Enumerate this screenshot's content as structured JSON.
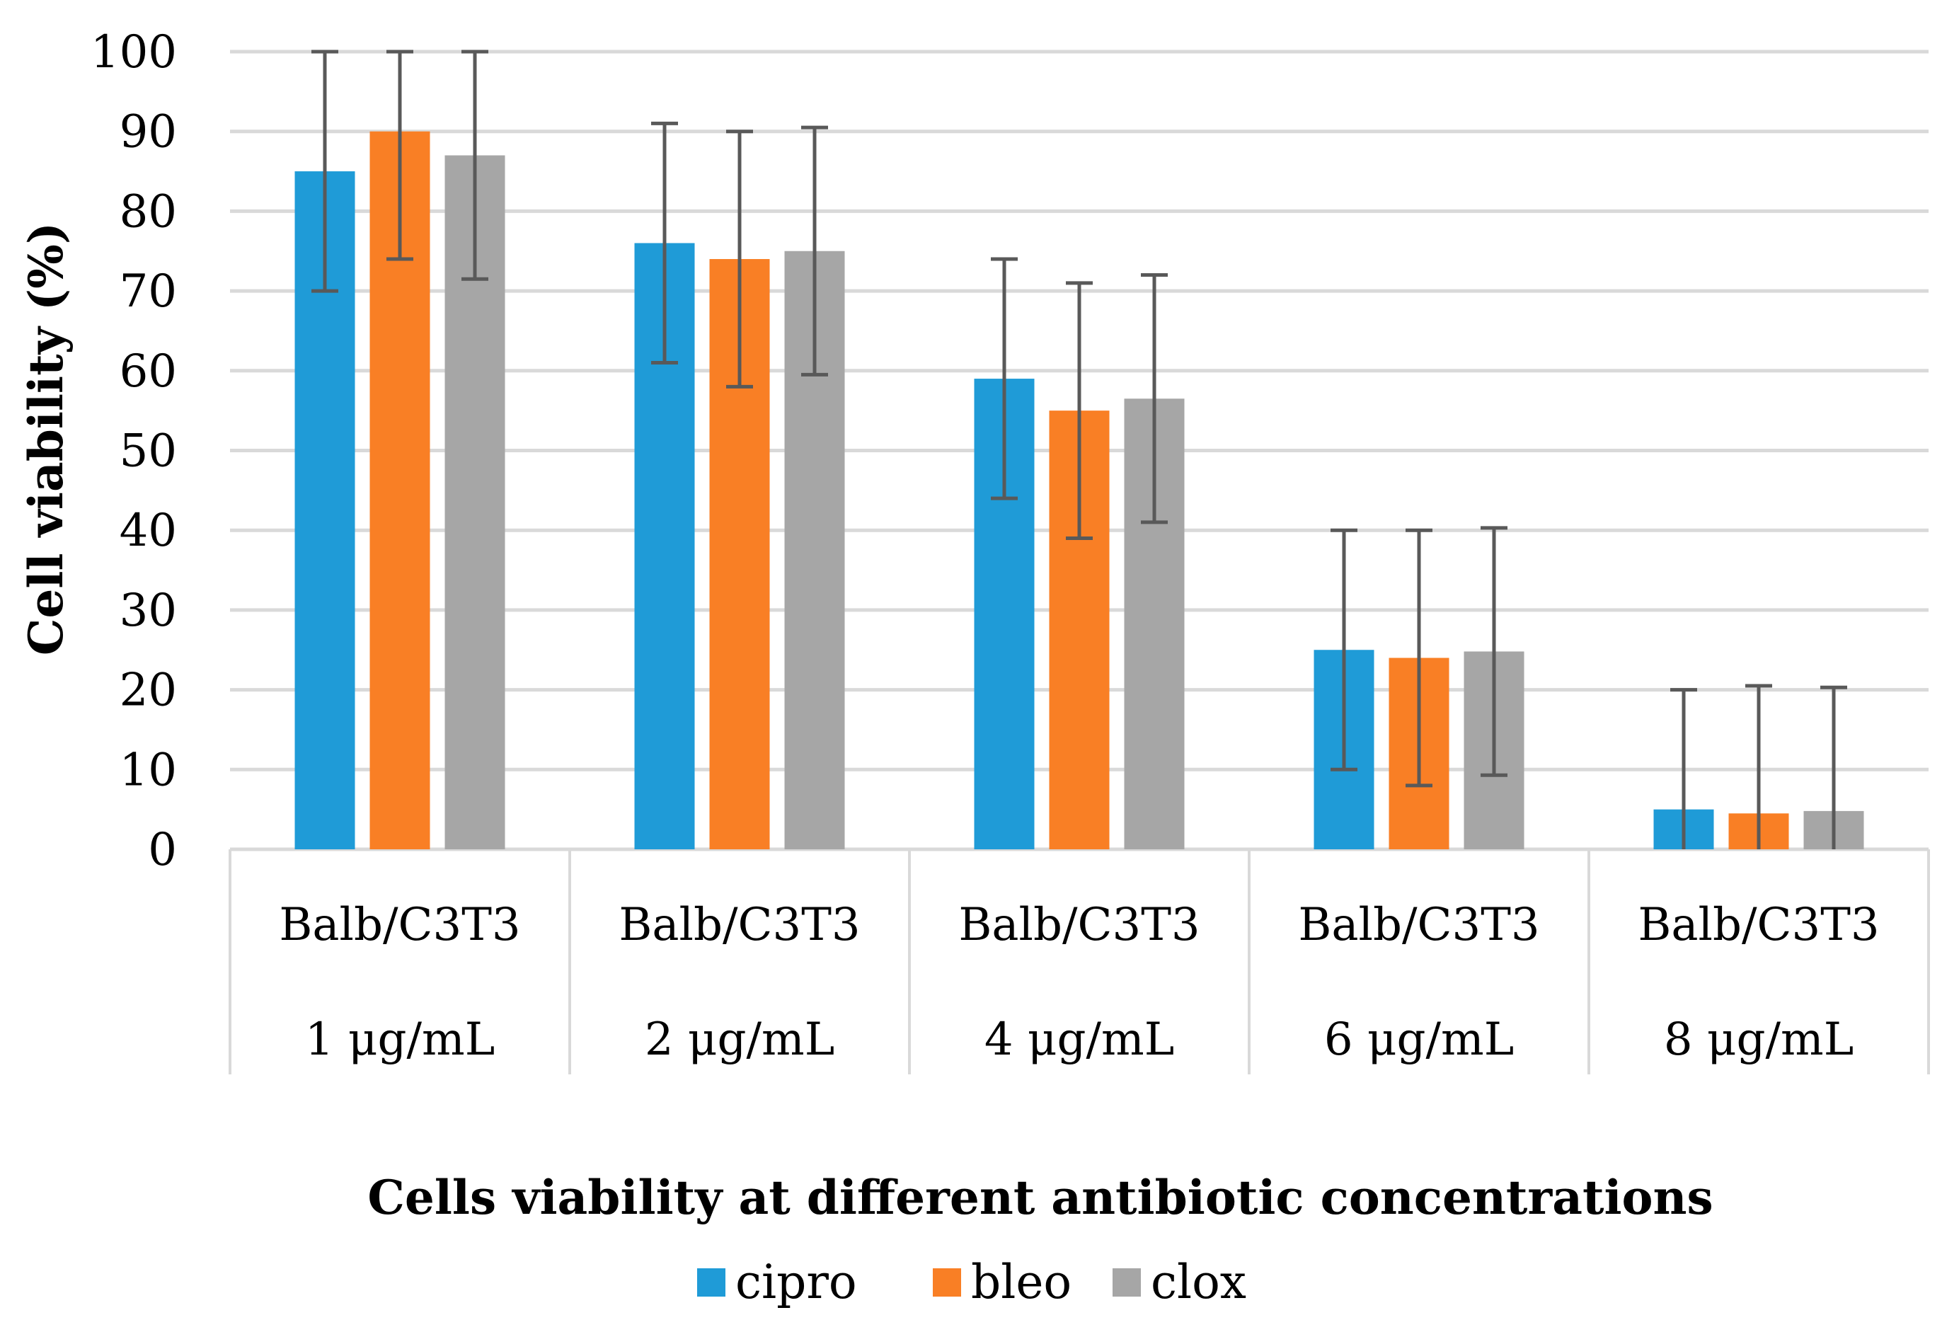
{
  "chart_data": {
    "type": "bar",
    "title": "",
    "xlabel": "Cells viability at different antibiotic concentrations",
    "ylabel": "Cell viability (%)",
    "ylim": [
      0,
      100
    ],
    "yticks": [
      0,
      10,
      20,
      30,
      40,
      50,
      60,
      70,
      80,
      90,
      100
    ],
    "grid": true,
    "legend_position": "bottom",
    "categories": [
      {
        "line1": "Balb/C3T3",
        "line2": "1 μg/mL"
      },
      {
        "line1": "Balb/C3T3",
        "line2": "2 μg/mL"
      },
      {
        "line1": "Balb/C3T3",
        "line2": "4 μg/mL"
      },
      {
        "line1": "Balb/C3T3",
        "line2": "6 μg/mL"
      },
      {
        "line1": "Balb/C3T3",
        "line2": "8 μg/mL"
      }
    ],
    "series": [
      {
        "name": "cipro",
        "color": "#1f9bd7",
        "values": [
          85,
          76,
          59,
          25,
          5
        ],
        "errors": [
          15,
          15,
          15,
          15,
          15
        ]
      },
      {
        "name": "bleo",
        "color": "#f97f25",
        "values": [
          90,
          74,
          55,
          24,
          4.5
        ],
        "errors": [
          16,
          16,
          16,
          16,
          16
        ]
      },
      {
        "name": "clox",
        "color": "#a6a6a6",
        "values": [
          87,
          75,
          56.5,
          24.8,
          4.8
        ],
        "errors": [
          15.5,
          15.5,
          15.5,
          15.5,
          15.5
        ]
      }
    ]
  }
}
